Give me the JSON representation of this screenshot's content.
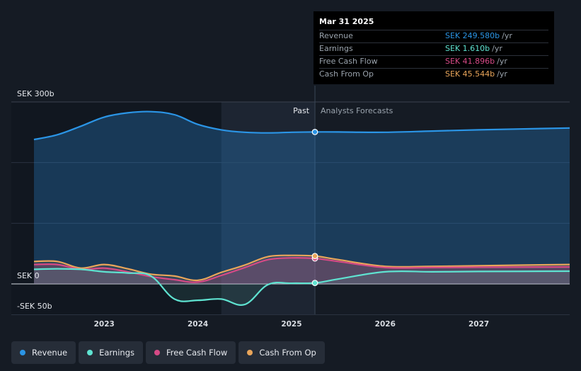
{
  "chart_data": {
    "type": "line",
    "y_axis": {
      "top_label": "SEK 300b",
      "zero_label": "SEK 0",
      "bottom_label": "-SEK 50b",
      "ylim": [
        -50,
        300
      ]
    },
    "x_ticks": [
      "2023",
      "2024",
      "2025",
      "2026",
      "2027"
    ],
    "xlim": [
      2022.25,
      2027.97
    ],
    "past_label": "Past",
    "forecast_label": "Analysts Forecasts",
    "past_end": 2025.25,
    "series": [
      {
        "name": "Revenue",
        "color": "#2b95e6",
        "points": [
          [
            2022.25,
            238
          ],
          [
            2022.5,
            246
          ],
          [
            2022.75,
            260
          ],
          [
            2023.0,
            275
          ],
          [
            2023.25,
            282
          ],
          [
            2023.5,
            284
          ],
          [
            2023.75,
            279
          ],
          [
            2024.0,
            263
          ],
          [
            2024.25,
            254
          ],
          [
            2024.5,
            250
          ],
          [
            2024.75,
            249
          ],
          [
            2025.0,
            250
          ],
          [
            2025.25,
            250.5
          ],
          [
            2025.5,
            250.5
          ],
          [
            2026.0,
            250
          ],
          [
            2026.5,
            252
          ],
          [
            2027.0,
            254
          ],
          [
            2027.97,
            257
          ]
        ]
      },
      {
        "name": "Earnings",
        "color": "#5fe3d1",
        "points": [
          [
            2022.25,
            24
          ],
          [
            2022.5,
            25
          ],
          [
            2022.75,
            24
          ],
          [
            2023.0,
            20
          ],
          [
            2023.25,
            18
          ],
          [
            2023.5,
            13
          ],
          [
            2023.75,
            -25
          ],
          [
            2024.0,
            -27
          ],
          [
            2024.25,
            -25
          ],
          [
            2024.5,
            -34
          ],
          [
            2024.75,
            -1
          ],
          [
            2025.0,
            1
          ],
          [
            2025.25,
            1.6
          ],
          [
            2025.5,
            8
          ],
          [
            2026.0,
            20
          ],
          [
            2026.5,
            20
          ],
          [
            2027.0,
            20.5
          ],
          [
            2027.97,
            21
          ]
        ]
      },
      {
        "name": "Free Cash Flow",
        "color": "#d64a86",
        "points": [
          [
            2022.25,
            32
          ],
          [
            2022.5,
            32
          ],
          [
            2022.75,
            24
          ],
          [
            2023.0,
            26
          ],
          [
            2023.25,
            20
          ],
          [
            2023.5,
            12
          ],
          [
            2023.75,
            7
          ],
          [
            2024.0,
            3
          ],
          [
            2024.25,
            14
          ],
          [
            2024.5,
            27
          ],
          [
            2024.75,
            40
          ],
          [
            2025.0,
            43
          ],
          [
            2025.25,
            42
          ],
          [
            2025.5,
            37
          ],
          [
            2026.0,
            27
          ],
          [
            2026.5,
            27
          ],
          [
            2027.0,
            27.5
          ],
          [
            2027.97,
            28
          ]
        ]
      },
      {
        "name": "Cash From Op",
        "color": "#e9a55a",
        "points": [
          [
            2022.25,
            37
          ],
          [
            2022.5,
            37
          ],
          [
            2022.75,
            26
          ],
          [
            2023.0,
            32
          ],
          [
            2023.25,
            25
          ],
          [
            2023.5,
            16
          ],
          [
            2023.75,
            13
          ],
          [
            2024.0,
            6
          ],
          [
            2024.25,
            19
          ],
          [
            2024.5,
            31
          ],
          [
            2024.75,
            45
          ],
          [
            2025.0,
            47
          ],
          [
            2025.25,
            46
          ],
          [
            2025.5,
            40
          ],
          [
            2026.0,
            29
          ],
          [
            2026.5,
            29
          ],
          [
            2027.0,
            30
          ],
          [
            2027.97,
            32
          ]
        ]
      }
    ]
  },
  "tooltip": {
    "date": "Mar 31 2025",
    "rows": [
      {
        "label": "Revenue",
        "value": "SEK 249.580b",
        "unit": "/yr",
        "color": "#2b95e6"
      },
      {
        "label": "Earnings",
        "value": "SEK 1.610b",
        "unit": "/yr",
        "color": "#5fe3d1"
      },
      {
        "label": "Free Cash Flow",
        "value": "SEK 41.896b",
        "unit": "/yr",
        "color": "#d64a86"
      },
      {
        "label": "Cash From Op",
        "value": "SEK 45.544b",
        "unit": "/yr",
        "color": "#e9a55a"
      }
    ]
  },
  "legend": [
    {
      "label": "Revenue",
      "color": "#2b95e6"
    },
    {
      "label": "Earnings",
      "color": "#5fe3d1"
    },
    {
      "label": "Free Cash Flow",
      "color": "#d64a86"
    },
    {
      "label": "Cash From Op",
      "color": "#e9a55a"
    }
  ]
}
